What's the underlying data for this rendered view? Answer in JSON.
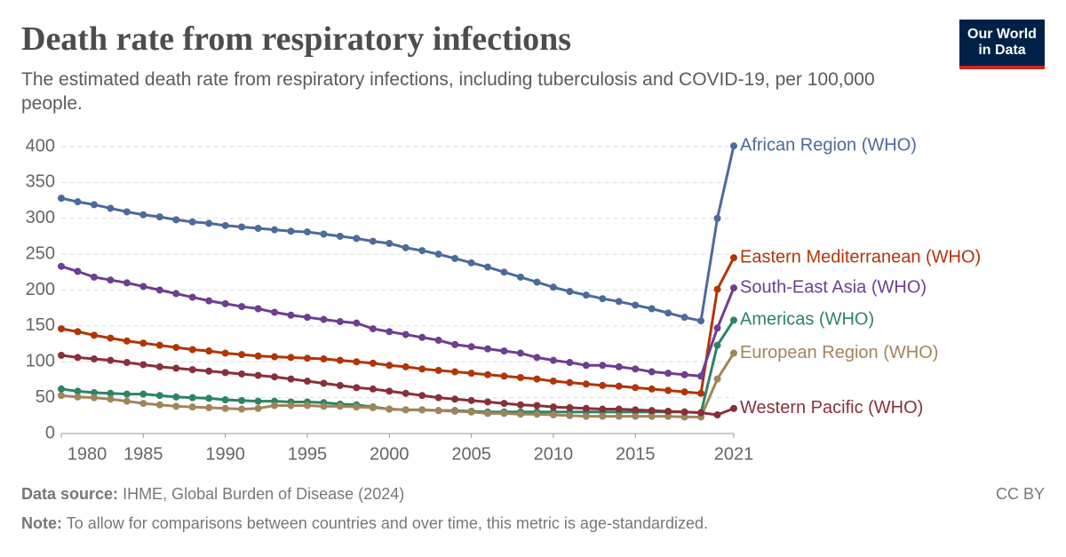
{
  "chart_data": {
    "type": "line",
    "title": "Death rate from respiratory infections",
    "subtitle": "The estimated death rate from respiratory infections, including tuberculosis and COVID-19, per 100,000 people.",
    "logo": "Our World in Data",
    "source_label": "Data source:",
    "source": "IHME, Global Burden of Disease (2024)",
    "note_label": "Note:",
    "note": "To allow for comparisons between countries and over time, this metric is age-standardized.",
    "license": "CC BY",
    "x": [
      1980,
      1981,
      1982,
      1983,
      1984,
      1985,
      1986,
      1987,
      1988,
      1989,
      1990,
      1991,
      1992,
      1993,
      1994,
      1995,
      1996,
      1997,
      1998,
      1999,
      2000,
      2001,
      2002,
      2003,
      2004,
      2005,
      2006,
      2007,
      2008,
      2009,
      2010,
      2011,
      2012,
      2013,
      2014,
      2015,
      2016,
      2017,
      2018,
      2019,
      2020,
      2021
    ],
    "xlim": [
      1980,
      2021
    ],
    "xticks": [
      1980,
      1985,
      1990,
      1995,
      2000,
      2005,
      2010,
      2015,
      2021
    ],
    "ylim": [
      0,
      400
    ],
    "yticks": [
      0,
      50,
      100,
      150,
      200,
      250,
      300,
      350,
      400
    ],
    "grid": true,
    "series": [
      {
        "name": "African Region (WHO)",
        "color": "#4c6a9c",
        "values": [
          328,
          323,
          319,
          314,
          309,
          305,
          302,
          298,
          295,
          293,
          290,
          288,
          286,
          284,
          282,
          281,
          278,
          275,
          272,
          268,
          265,
          259,
          255,
          250,
          244,
          238,
          232,
          225,
          218,
          211,
          204,
          198,
          193,
          188,
          184,
          179,
          174,
          168,
          162,
          157,
          300,
          401
        ]
      },
      {
        "name": "Eastern Mediterranean (WHO)",
        "color": "#b13507",
        "values": [
          146,
          142,
          137,
          133,
          129,
          126,
          123,
          120,
          117,
          115,
          112,
          110,
          108,
          107,
          106,
          105,
          104,
          102,
          100,
          98,
          95,
          93,
          90,
          88,
          86,
          84,
          82,
          80,
          78,
          76,
          73,
          71,
          69,
          67,
          66,
          64,
          62,
          60,
          58,
          56,
          201,
          245
        ]
      },
      {
        "name": "South-East Asia (WHO)",
        "color": "#6d3e91",
        "values": [
          233,
          226,
          218,
          214,
          210,
          205,
          200,
          195,
          190,
          185,
          181,
          177,
          174,
          169,
          165,
          162,
          159,
          156,
          154,
          146,
          142,
          138,
          134,
          130,
          124,
          121,
          118,
          115,
          112,
          106,
          102,
          99,
          95,
          95,
          93,
          90,
          86,
          84,
          82,
          80,
          147,
          203
        ]
      },
      {
        "name": "Americas (WHO)",
        "color": "#2c8465",
        "values": [
          62,
          59,
          57,
          56,
          55,
          55,
          53,
          51,
          50,
          49,
          47,
          46,
          45,
          45,
          44,
          44,
          43,
          41,
          40,
          37,
          34,
          33,
          33,
          32,
          32,
          31,
          30,
          30,
          30,
          30,
          30,
          30,
          30,
          30,
          30,
          30,
          30,
          30,
          30,
          29,
          123,
          158
        ]
      },
      {
        "name": "European Region (WHO)",
        "color": "#a2845a",
        "values": [
          53,
          51,
          50,
          48,
          45,
          42,
          40,
          38,
          37,
          36,
          35,
          34,
          35,
          39,
          39,
          39,
          38,
          38,
          37,
          36,
          34,
          33,
          33,
          32,
          31,
          30,
          28,
          28,
          27,
          27,
          26,
          25,
          24,
          24,
          24,
          24,
          24,
          24,
          23,
          23,
          76,
          112
        ]
      },
      {
        "name": "Western Pacific (WHO)",
        "color": "#883039",
        "values": [
          109,
          106,
          104,
          102,
          99,
          96,
          93,
          91,
          89,
          87,
          85,
          83,
          81,
          79,
          76,
          73,
          70,
          67,
          64,
          62,
          59,
          56,
          53,
          50,
          48,
          46,
          44,
          42,
          40,
          39,
          37,
          36,
          35,
          34,
          34,
          33,
          32,
          31,
          30,
          29,
          26,
          35
        ]
      }
    ]
  }
}
